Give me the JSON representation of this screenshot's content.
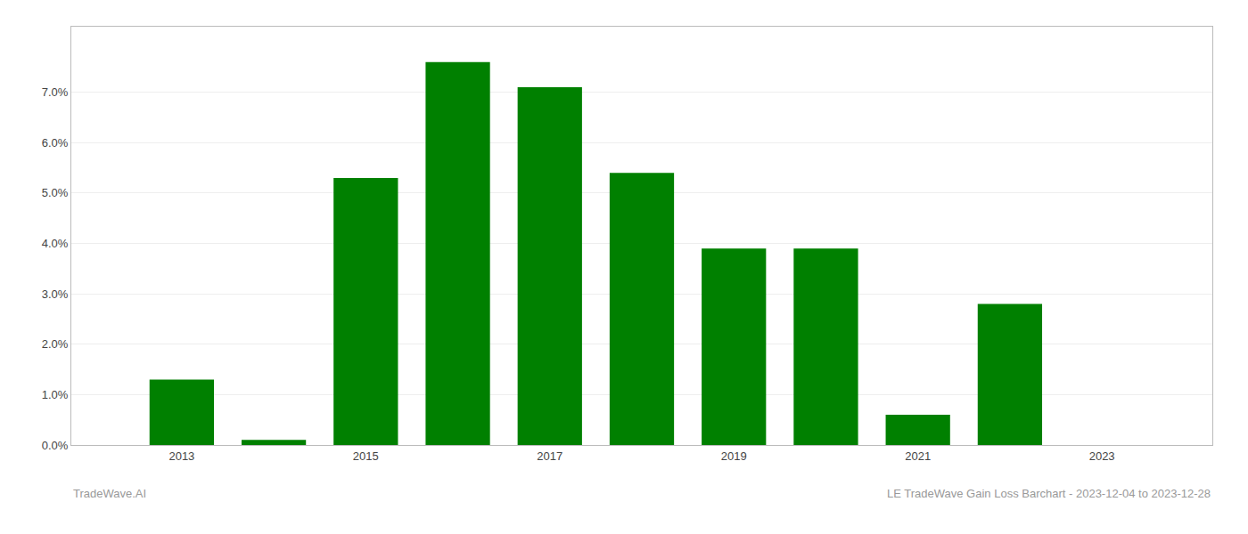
{
  "chart_data": {
    "type": "bar",
    "x": [
      2013,
      2014,
      2015,
      2016,
      2017,
      2018,
      2019,
      2020,
      2021,
      2022
    ],
    "values": [
      0.013,
      0.001,
      0.053,
      0.076,
      0.071,
      0.054,
      0.039,
      0.039,
      0.006,
      0.028
    ],
    "color": "#008000",
    "xlim": [
      2011.8,
      2024.2
    ],
    "xticks": [
      2013,
      2015,
      2017,
      2019,
      2021,
      2023
    ],
    "ylim": [
      0,
      0.083
    ],
    "yticks": [
      {
        "value": 0.0,
        "label": "0.0%"
      },
      {
        "value": 0.01,
        "label": "1.0%"
      },
      {
        "value": 0.02,
        "label": "2.0%"
      },
      {
        "value": 0.03,
        "label": "3.0%"
      },
      {
        "value": 0.04,
        "label": "4.0%"
      },
      {
        "value": 0.05,
        "label": "5.0%"
      },
      {
        "value": 0.06,
        "label": "6.0%"
      },
      {
        "value": 0.07,
        "label": "7.0%"
      }
    ],
    "grid": true,
    "annotations": [
      "TradeWave.AI",
      "LE TradeWave Gain Loss Barchart - 2023-12-04 to 2023-12-28"
    ]
  }
}
